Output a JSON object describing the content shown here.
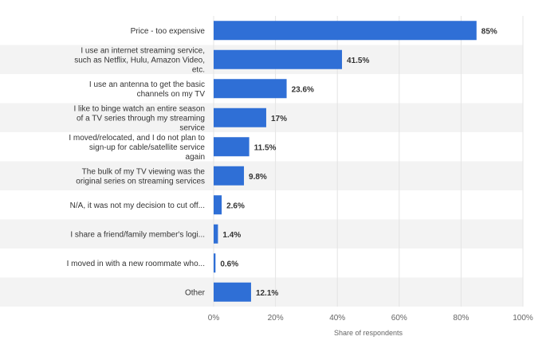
{
  "chart_data": {
    "type": "bar",
    "orientation": "horizontal",
    "categories": [
      [
        "Price - too expensive"
      ],
      [
        "I use an internet streaming service,",
        "such as Netflix, Hulu, Amazon Video,",
        "etc."
      ],
      [
        "I use an antenna to get the basic",
        "channels on my TV"
      ],
      [
        "I like to binge watch an entire season",
        "of a TV series through my streaming",
        "service"
      ],
      [
        "I moved/relocated, and I do not plan to",
        "sign-up for cable/satellite service",
        "again"
      ],
      [
        "The bulk of my TV viewing was the",
        "original series on streaming services"
      ],
      [
        "N/A, it was not my decision to cut off..."
      ],
      [
        "I share a friend/family member's logi..."
      ],
      [
        "I moved in with a new roommate who..."
      ],
      [
        "Other"
      ]
    ],
    "values": [
      85,
      41.5,
      23.6,
      17,
      11.5,
      9.8,
      2.6,
      1.4,
      0.6,
      12.1
    ],
    "value_labels": [
      "85%",
      "41.5%",
      "23.6%",
      "17%",
      "11.5%",
      "9.8%",
      "2.6%",
      "1.4%",
      "0.6%",
      "12.1%"
    ],
    "xlabel": "Share of respondents",
    "xlim": [
      0,
      100
    ],
    "x_ticks": [
      0,
      20,
      40,
      60,
      80,
      100
    ],
    "x_tick_labels": [
      "0%",
      "20%",
      "40%",
      "60%",
      "80%",
      "100%"
    ],
    "grid": true,
    "colors": {
      "bar": "#2f6fd6",
      "band": "#f3f3f3",
      "grid": "#e4e4e4"
    }
  }
}
